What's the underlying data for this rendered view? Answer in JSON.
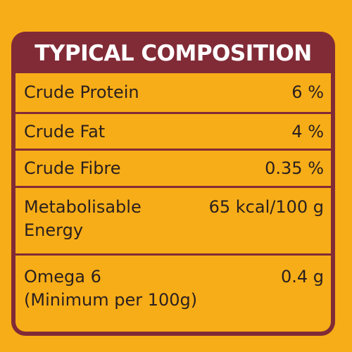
{
  "title": "TYPICAL COMPOSITION",
  "rows": [
    {
      "label": "Crude Protein",
      "value": "6 %"
    },
    {
      "label": "Crude Fat",
      "value": "4 %"
    },
    {
      "label": "Crude Fibre",
      "value": "0.35 %"
    },
    {
      "label": "Metabolisable\nEnergy",
      "value": "65 kcal/100 g"
    },
    {
      "label": "Omega 6\n(Minimum per 100g)",
      "value": "0.4 g"
    }
  ],
  "colors": {
    "background": "#f7ad17",
    "frame": "#812b36",
    "title_text": "#ffffff",
    "body_text": "#2a1f1f"
  }
}
